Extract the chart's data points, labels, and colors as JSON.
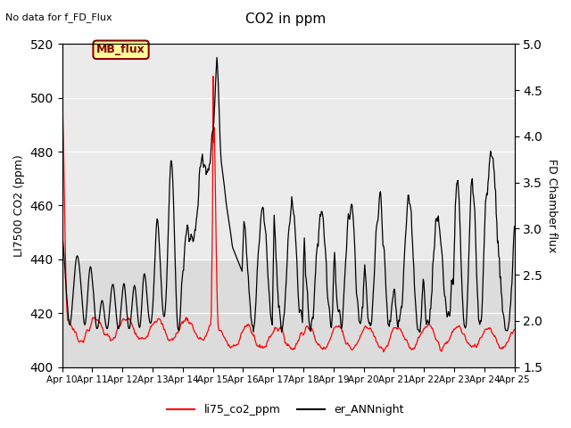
{
  "title": "CO2 in ppm",
  "ylabel_left": "LI7500 CO2 (ppm)",
  "ylabel_right": "FD Chamber flux",
  "ylim_left": [
    400,
    520
  ],
  "ylim_right": [
    1.5,
    5.0
  ],
  "xlabel_ticks": [
    "Apr 10",
    "Apr 11",
    "Apr 12",
    "Apr 13",
    "Apr 14",
    "Apr 15",
    "Apr 16",
    "Apr 17",
    "Apr 18",
    "Apr 19",
    "Apr 20",
    "Apr 21",
    "Apr 22",
    "Apr 23",
    "Apr 24",
    "Apr 25"
  ],
  "no_data_text": "No data for f_FD_Flux",
  "mb_flux_label": "MB_flux",
  "legend_red_label": "li75_co2_ppm",
  "legend_black_label": "er_ANNnight",
  "bg_color": "#ffffff",
  "plot_bg_color": "#dcdcdc",
  "light_band_color": "#ebebeb",
  "yticks_left": [
    400,
    420,
    440,
    460,
    480,
    500,
    520
  ],
  "yticks_right": [
    1.5,
    2.0,
    2.5,
    3.0,
    3.5,
    4.0,
    4.5,
    5.0
  ],
  "hgrid_at": [
    420,
    440,
    460,
    480,
    500,
    520
  ]
}
